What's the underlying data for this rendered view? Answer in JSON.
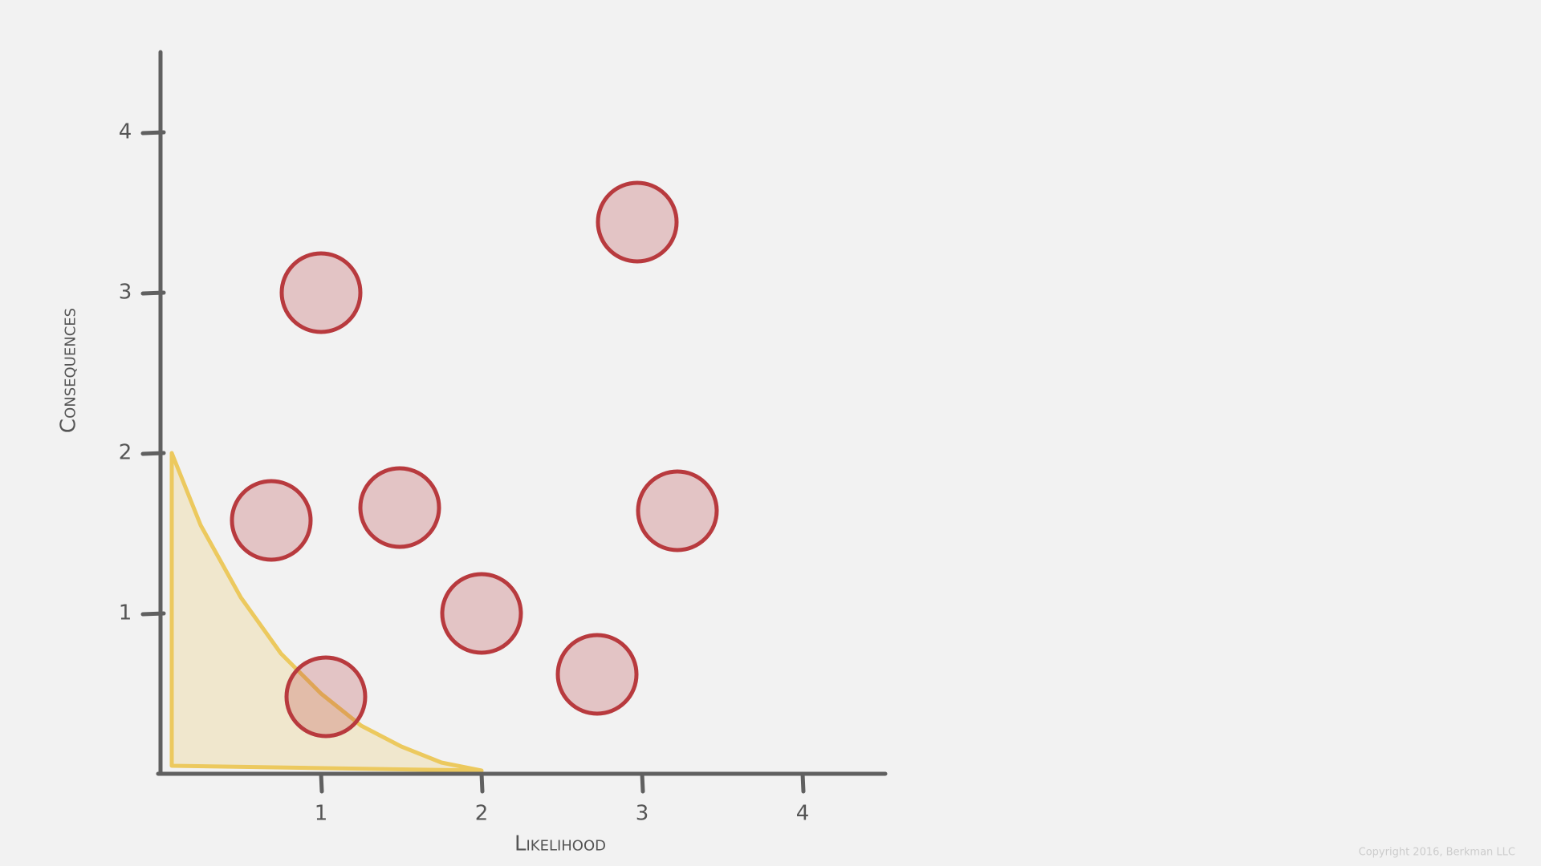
{
  "chart_data": {
    "type": "scatter",
    "xlabel": "Likelihood",
    "ylabel": "Consequences",
    "xlim": [
      0,
      4.5
    ],
    "ylim": [
      0,
      4.5
    ],
    "xticks": [
      1,
      2,
      3,
      4
    ],
    "yticks": [
      1,
      2,
      3,
      4
    ],
    "series": [
      {
        "color": "#b83a3e",
        "x": [
          1.0,
          2.97,
          0.69,
          1.49,
          3.22,
          2.0,
          2.72,
          1.03
        ],
        "values": [
          3.0,
          3.44,
          1.58,
          1.66,
          1.64,
          1.0,
          0.62,
          0.48
        ]
      }
    ],
    "region": {
      "color": "#ecc95e",
      "x": [
        0.07,
        0.25,
        0.5,
        0.75,
        1.0,
        1.25,
        1.5,
        1.75,
        2.0,
        0.07
      ],
      "values": [
        2.0,
        1.55,
        1.1,
        0.75,
        0.5,
        0.3,
        0.17,
        0.07,
        0.02,
        0.05
      ]
    }
  },
  "footer": "Copyright 2016, Berkman LLC"
}
